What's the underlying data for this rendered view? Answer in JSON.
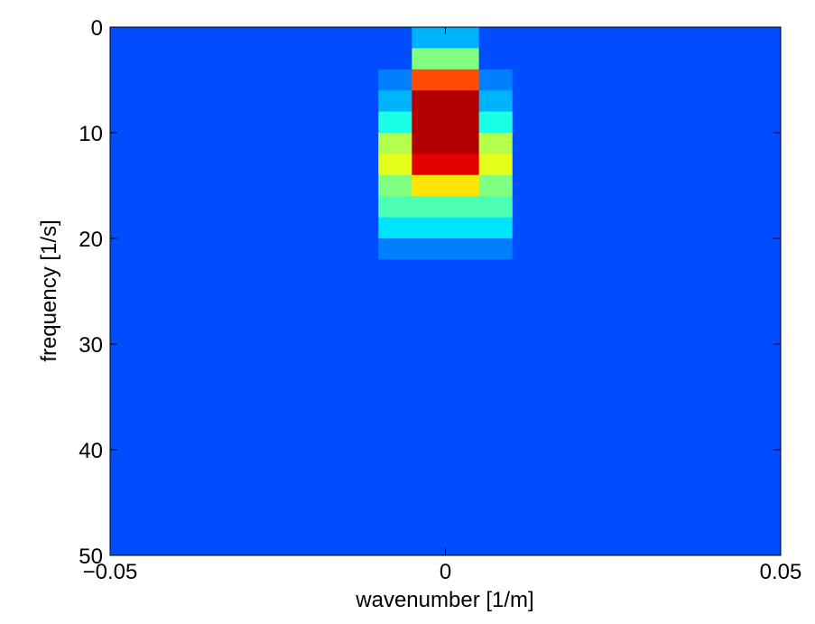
{
  "chart_data": {
    "type": "heatmap",
    "xlabel": "wavenumber [1/m]",
    "ylabel": "frequency [1/s]",
    "colormap": "jet",
    "zlim": [
      0,
      1
    ],
    "x": [
      -0.0475,
      -0.0425,
      -0.0375,
      -0.0325,
      -0.0275,
      -0.0225,
      -0.0175,
      -0.0125,
      -0.0075,
      -0.0025,
      0.0025,
      0.0075,
      0.0125,
      0.0175,
      0.0225,
      0.0275,
      0.0325,
      0.0375,
      0.0425,
      0.0475
    ],
    "y": [
      1,
      3,
      5,
      7,
      9,
      11,
      13,
      15,
      17,
      19,
      21,
      23,
      25,
      27,
      29,
      31,
      33,
      35,
      37,
      39,
      41,
      43,
      45,
      47,
      49
    ],
    "z": [
      [
        0.2,
        0.2,
        0.2,
        0.2,
        0.2,
        0.2,
        0.2,
        0.2,
        0.2,
        0.3,
        0.3,
        0.2,
        0.2,
        0.2,
        0.2,
        0.2,
        0.2,
        0.2,
        0.2,
        0.2
      ],
      [
        0.2,
        0.2,
        0.2,
        0.2,
        0.2,
        0.2,
        0.2,
        0.2,
        0.2,
        0.5,
        0.5,
        0.2,
        0.2,
        0.2,
        0.2,
        0.2,
        0.2,
        0.2,
        0.2,
        0.2
      ],
      [
        0.2,
        0.2,
        0.2,
        0.2,
        0.2,
        0.2,
        0.2,
        0.2,
        0.25,
        0.8,
        0.8,
        0.25,
        0.2,
        0.2,
        0.2,
        0.2,
        0.2,
        0.2,
        0.2,
        0.2
      ],
      [
        0.2,
        0.2,
        0.2,
        0.2,
        0.2,
        0.2,
        0.2,
        0.2,
        0.3,
        0.95,
        0.95,
        0.3,
        0.2,
        0.2,
        0.2,
        0.2,
        0.2,
        0.2,
        0.2,
        0.2
      ],
      [
        0.2,
        0.2,
        0.2,
        0.2,
        0.2,
        0.2,
        0.2,
        0.2,
        0.4,
        0.95,
        0.95,
        0.4,
        0.2,
        0.2,
        0.2,
        0.2,
        0.2,
        0.2,
        0.2,
        0.2
      ],
      [
        0.2,
        0.2,
        0.2,
        0.2,
        0.2,
        0.2,
        0.2,
        0.2,
        0.55,
        0.95,
        0.95,
        0.55,
        0.2,
        0.2,
        0.2,
        0.2,
        0.2,
        0.2,
        0.2,
        0.2
      ],
      [
        0.2,
        0.2,
        0.2,
        0.2,
        0.2,
        0.2,
        0.2,
        0.2,
        0.6,
        0.9,
        0.9,
        0.6,
        0.2,
        0.2,
        0.2,
        0.2,
        0.2,
        0.2,
        0.2,
        0.2
      ],
      [
        0.2,
        0.2,
        0.2,
        0.2,
        0.2,
        0.2,
        0.2,
        0.2,
        0.5,
        0.65,
        0.65,
        0.5,
        0.2,
        0.2,
        0.2,
        0.2,
        0.2,
        0.2,
        0.2,
        0.2
      ],
      [
        0.2,
        0.2,
        0.2,
        0.2,
        0.2,
        0.2,
        0.2,
        0.2,
        0.45,
        0.45,
        0.45,
        0.45,
        0.2,
        0.2,
        0.2,
        0.2,
        0.2,
        0.2,
        0.2,
        0.2
      ],
      [
        0.2,
        0.2,
        0.2,
        0.2,
        0.2,
        0.2,
        0.2,
        0.2,
        0.35,
        0.35,
        0.35,
        0.35,
        0.2,
        0.2,
        0.2,
        0.2,
        0.2,
        0.2,
        0.2,
        0.2
      ],
      [
        0.2,
        0.2,
        0.2,
        0.2,
        0.2,
        0.2,
        0.2,
        0.2,
        0.25,
        0.25,
        0.25,
        0.25,
        0.2,
        0.2,
        0.2,
        0.2,
        0.2,
        0.2,
        0.2,
        0.2
      ],
      [
        0.2,
        0.2,
        0.2,
        0.2,
        0.2,
        0.2,
        0.2,
        0.2,
        0.2,
        0.2,
        0.2,
        0.2,
        0.2,
        0.2,
        0.2,
        0.2,
        0.2,
        0.2,
        0.2,
        0.2
      ],
      [
        0.2,
        0.2,
        0.2,
        0.2,
        0.2,
        0.2,
        0.2,
        0.2,
        0.2,
        0.2,
        0.2,
        0.2,
        0.2,
        0.2,
        0.2,
        0.2,
        0.2,
        0.2,
        0.2,
        0.2
      ],
      [
        0.2,
        0.2,
        0.2,
        0.2,
        0.2,
        0.2,
        0.2,
        0.2,
        0.2,
        0.2,
        0.2,
        0.2,
        0.2,
        0.2,
        0.2,
        0.2,
        0.2,
        0.2,
        0.2,
        0.2
      ],
      [
        0.2,
        0.2,
        0.2,
        0.2,
        0.2,
        0.2,
        0.2,
        0.2,
        0.2,
        0.2,
        0.2,
        0.2,
        0.2,
        0.2,
        0.2,
        0.2,
        0.2,
        0.2,
        0.2,
        0.2
      ],
      [
        0.2,
        0.2,
        0.2,
        0.2,
        0.2,
        0.2,
        0.2,
        0.2,
        0.2,
        0.2,
        0.2,
        0.2,
        0.2,
        0.2,
        0.2,
        0.2,
        0.2,
        0.2,
        0.2,
        0.2
      ],
      [
        0.2,
        0.2,
        0.2,
        0.2,
        0.2,
        0.2,
        0.2,
        0.2,
        0.2,
        0.2,
        0.2,
        0.2,
        0.2,
        0.2,
        0.2,
        0.2,
        0.2,
        0.2,
        0.2,
        0.2
      ],
      [
        0.2,
        0.2,
        0.2,
        0.2,
        0.2,
        0.2,
        0.2,
        0.2,
        0.2,
        0.2,
        0.2,
        0.2,
        0.2,
        0.2,
        0.2,
        0.2,
        0.2,
        0.2,
        0.2,
        0.2
      ],
      [
        0.2,
        0.2,
        0.2,
        0.2,
        0.2,
        0.2,
        0.2,
        0.2,
        0.2,
        0.2,
        0.2,
        0.2,
        0.2,
        0.2,
        0.2,
        0.2,
        0.2,
        0.2,
        0.2,
        0.2
      ],
      [
        0.2,
        0.2,
        0.2,
        0.2,
        0.2,
        0.2,
        0.2,
        0.2,
        0.2,
        0.2,
        0.2,
        0.2,
        0.2,
        0.2,
        0.2,
        0.2,
        0.2,
        0.2,
        0.2,
        0.2
      ],
      [
        0.2,
        0.2,
        0.2,
        0.2,
        0.2,
        0.2,
        0.2,
        0.2,
        0.2,
        0.2,
        0.2,
        0.2,
        0.2,
        0.2,
        0.2,
        0.2,
        0.2,
        0.2,
        0.2,
        0.2
      ],
      [
        0.2,
        0.2,
        0.2,
        0.2,
        0.2,
        0.2,
        0.2,
        0.2,
        0.2,
        0.2,
        0.2,
        0.2,
        0.2,
        0.2,
        0.2,
        0.2,
        0.2,
        0.2,
        0.2,
        0.2
      ],
      [
        0.2,
        0.2,
        0.2,
        0.2,
        0.2,
        0.2,
        0.2,
        0.2,
        0.2,
        0.2,
        0.2,
        0.2,
        0.2,
        0.2,
        0.2,
        0.2,
        0.2,
        0.2,
        0.2,
        0.2
      ],
      [
        0.2,
        0.2,
        0.2,
        0.2,
        0.2,
        0.2,
        0.2,
        0.2,
        0.2,
        0.2,
        0.2,
        0.2,
        0.2,
        0.2,
        0.2,
        0.2,
        0.2,
        0.2,
        0.2,
        0.2
      ],
      [
        0.2,
        0.2,
        0.2,
        0.2,
        0.2,
        0.2,
        0.2,
        0.2,
        0.2,
        0.2,
        0.2,
        0.2,
        0.2,
        0.2,
        0.2,
        0.2,
        0.2,
        0.2,
        0.2,
        0.2
      ]
    ],
    "xlim": [
      -0.05,
      0.05
    ],
    "xticks": [
      {
        "value": -0.05,
        "label": "−0.05"
      },
      0,
      0.05
    ],
    "ylim": [
      0,
      50
    ],
    "yticks": [
      0,
      10,
      20,
      30,
      40,
      50
    ],
    "y_reversed": true
  }
}
